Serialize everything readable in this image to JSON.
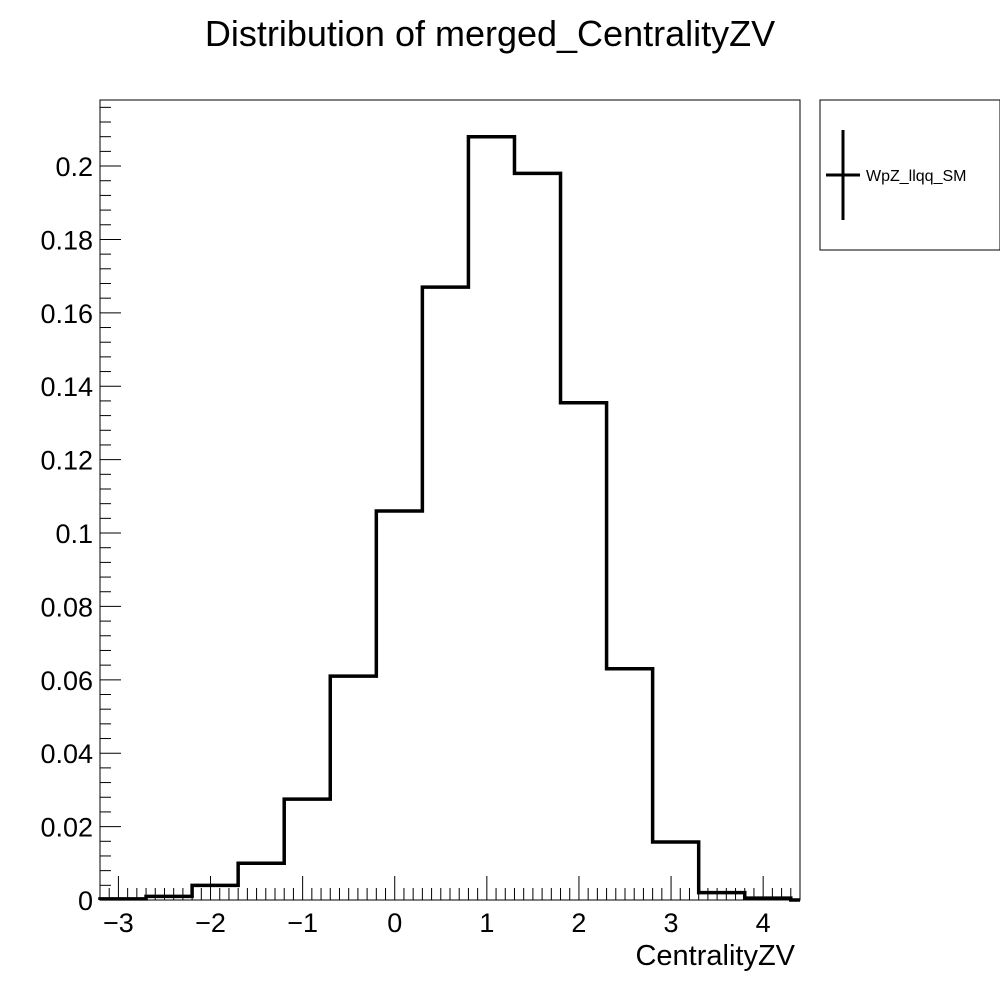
{
  "chart_data": {
    "type": "bar",
    "style": "step-histogram",
    "title": "Distribution of merged_CentralityZV",
    "xlabel": "CentralityZV",
    "ylabel": "",
    "xlim": [
      -3.2,
      4.4
    ],
    "ylim": [
      0,
      0.218
    ],
    "bin_edges": [
      -3.2,
      -2.7,
      -2.2,
      -1.7,
      -1.2,
      -0.7,
      -0.2,
      0.3,
      0.8,
      1.3,
      1.8,
      2.3,
      2.8,
      3.3,
      3.8,
      4.3
    ],
    "series": [
      {
        "name": "WpZ_llqq_SM",
        "values": [
          0.0003,
          0.001,
          0.004,
          0.01,
          0.0275,
          0.061,
          0.106,
          0.167,
          0.208,
          0.198,
          0.1355,
          0.063,
          0.0158,
          0.002,
          0.0005
        ]
      }
    ],
    "x_ticks": [
      -3,
      -2,
      -1,
      0,
      1,
      2,
      3,
      4
    ],
    "x_tick_labels": [
      "−3",
      "−2",
      "−1",
      "0",
      "1",
      "2",
      "3",
      "4"
    ],
    "y_ticks": [
      0,
      0.02,
      0.04,
      0.06,
      0.08,
      0.1,
      0.12,
      0.14,
      0.16,
      0.18,
      0.2
    ],
    "y_tick_labels": [
      "0",
      "0.02",
      "0.04",
      "0.06",
      "0.08",
      "0.1",
      "0.12",
      "0.14",
      "0.16",
      "0.18",
      "0.2"
    ],
    "legend": {
      "position": "top-right-outside",
      "entries": [
        "WpZ_llqq_SM"
      ]
    },
    "grid": false,
    "line_color": "#000000"
  }
}
